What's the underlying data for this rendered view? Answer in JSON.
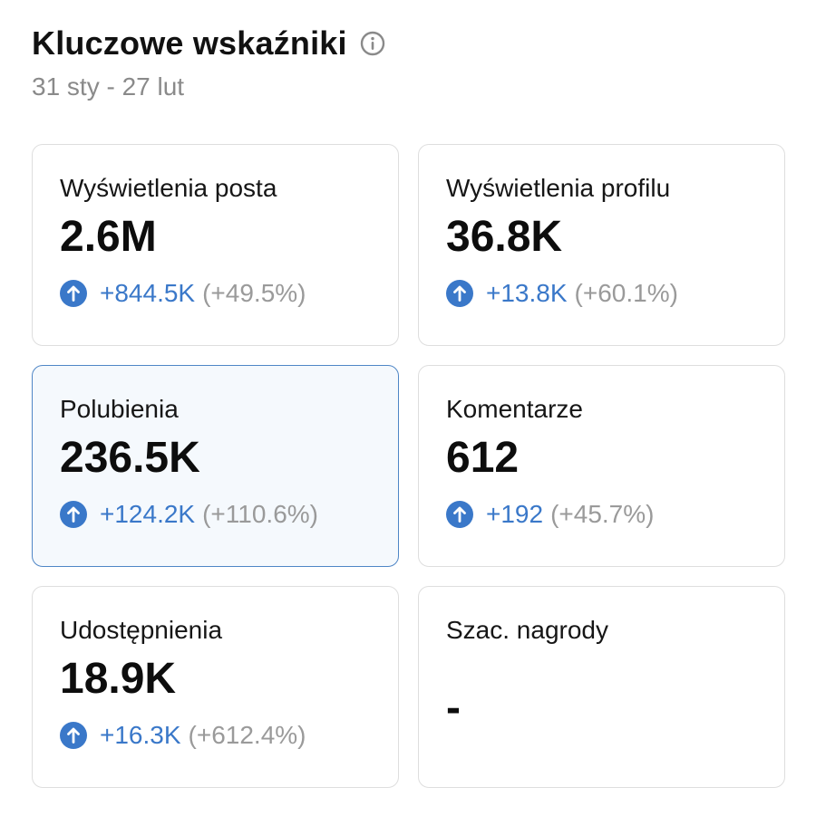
{
  "header": {
    "title": "Kluczowe wskaźniki",
    "info_icon": "info-circle-icon",
    "date_range": "31 sty - 27 lut"
  },
  "colors": {
    "accent_blue": "#3a78c9",
    "selected_border": "#4f86c6",
    "selected_bg": "#f5f9fd",
    "muted_text": "#8a8a8a"
  },
  "metrics": [
    {
      "label": "Wyświetlenia posta",
      "value": "2.6M",
      "change": "+844.5K",
      "change_pct": "(+49.5%)",
      "trend_icon": "arrow-up-circle-icon"
    },
    {
      "label": "Wyświetlenia profilu",
      "value": "36.8K",
      "change": "+13.8K",
      "change_pct": "(+60.1%)",
      "trend_icon": "arrow-up-circle-icon"
    },
    {
      "label": "Polubienia",
      "value": "236.5K",
      "change": "+124.2K",
      "change_pct": "(+110.6%)",
      "trend_icon": "arrow-up-circle-icon",
      "selected": true
    },
    {
      "label": "Komentarze",
      "value": "612",
      "change": "+192",
      "change_pct": "(+45.7%)",
      "trend_icon": "arrow-up-circle-icon"
    },
    {
      "label": "Udostępnienia",
      "value": "18.9K",
      "change": "+16.3K",
      "change_pct": "(+612.4%)",
      "trend_icon": "arrow-up-circle-icon"
    },
    {
      "label": "Szac. nagrody",
      "value": "-"
    }
  ]
}
